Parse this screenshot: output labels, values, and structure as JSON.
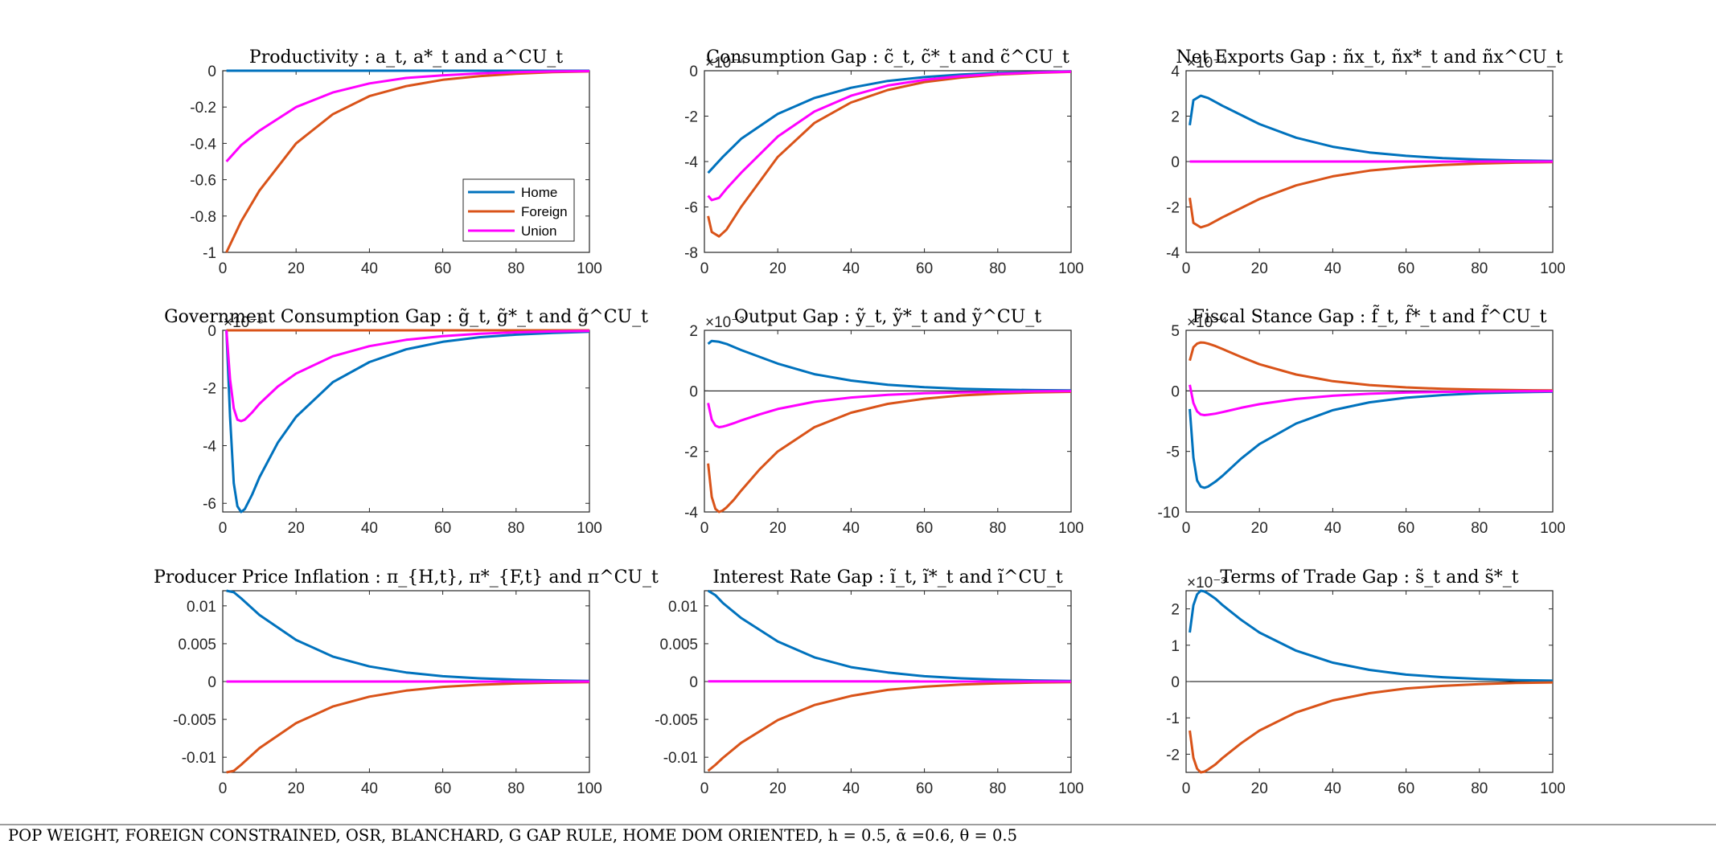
{
  "colors": {
    "home": "#0072BD",
    "foreign": "#D95319",
    "union": "#FF00FF",
    "axis": "#262626",
    "zero_line": "#000000"
  },
  "footer": {
    "text": "POP WEIGHT, FOREIGN CONSTRAINED, OSR, BLANCHARD, G GAP RULE, HOME DOM ORIENTED, h = 0.5, ᾱ =0.6, θ = 0.5"
  },
  "chart_data": [
    {
      "type": "line",
      "title": "Productivity : a_t, a*_t and a^CU_t",
      "xlim": [
        0,
        100
      ],
      "ylim": [
        -1,
        0
      ],
      "xticks": [
        0,
        20,
        40,
        60,
        80,
        100
      ],
      "yticks": [
        0,
        -0.2,
        -0.4,
        -0.6,
        -0.8,
        -1
      ],
      "ytick_labels": [
        "0",
        "-0.2",
        "-0.4",
        "-0.6",
        "-0.8",
        "-1"
      ],
      "exponent": "",
      "zero_line": false,
      "legend": {
        "position": "bottom-right",
        "entries": [
          "Home",
          "Foreign",
          "Union"
        ]
      },
      "series": [
        {
          "name": "Home",
          "x": [
            1,
            100
          ],
          "values": [
            0,
            0
          ]
        },
        {
          "name": "Foreign",
          "x": [
            1,
            5,
            10,
            20,
            30,
            40,
            50,
            60,
            70,
            80,
            90,
            100
          ],
          "values": [
            -1.0,
            -0.83,
            -0.66,
            -0.4,
            -0.24,
            -0.14,
            -0.085,
            -0.05,
            -0.03,
            -0.017,
            -0.008,
            -0.004
          ]
        },
        {
          "name": "Union",
          "x": [
            1,
            5,
            10,
            20,
            30,
            40,
            50,
            60,
            70,
            80,
            90,
            100
          ],
          "values": [
            -0.5,
            -0.41,
            -0.33,
            -0.2,
            -0.12,
            -0.07,
            -0.04,
            -0.025,
            -0.015,
            -0.008,
            -0.004,
            -0.002
          ]
        }
      ]
    },
    {
      "type": "line",
      "title": "Consumption Gap : c̃_t, c̃*_t and c̃^CU_t",
      "xlim": [
        0,
        100
      ],
      "ylim": [
        -8,
        0
      ],
      "xticks": [
        0,
        20,
        40,
        60,
        80,
        100
      ],
      "yticks": [
        0,
        -2,
        -4,
        -6,
        -8
      ],
      "ytick_labels": [
        "0",
        "-2",
        "-4",
        "-6",
        "-8"
      ],
      "exponent": "×10⁻⁴",
      "zero_line": false,
      "series": [
        {
          "name": "Home",
          "x": [
            1,
            5,
            10,
            20,
            30,
            40,
            50,
            60,
            70,
            80,
            90,
            100
          ],
          "values": [
            -4.5,
            -3.8,
            -3.0,
            -1.9,
            -1.2,
            -0.75,
            -0.45,
            -0.28,
            -0.17,
            -0.1,
            -0.06,
            -0.03
          ]
        },
        {
          "name": "Foreign",
          "x": [
            1,
            2,
            4,
            6,
            10,
            20,
            30,
            40,
            50,
            60,
            70,
            80,
            90,
            100
          ],
          "values": [
            -6.4,
            -7.1,
            -7.3,
            -7.0,
            -6.0,
            -3.8,
            -2.3,
            -1.4,
            -0.85,
            -0.5,
            -0.3,
            -0.17,
            -0.1,
            -0.05
          ]
        },
        {
          "name": "Union",
          "x": [
            1,
            2,
            4,
            6,
            10,
            20,
            30,
            40,
            50,
            60,
            70,
            80,
            90,
            100
          ],
          "values": [
            -5.5,
            -5.7,
            -5.6,
            -5.2,
            -4.5,
            -2.9,
            -1.8,
            -1.1,
            -0.65,
            -0.4,
            -0.24,
            -0.14,
            -0.08,
            -0.04
          ]
        }
      ]
    },
    {
      "type": "line",
      "title": "Net Exports Gap : ñx_t, ñx*_t and ñx^CU_t",
      "xlim": [
        0,
        100
      ],
      "ylim": [
        -4,
        4
      ],
      "xticks": [
        0,
        20,
        40,
        60,
        80,
        100
      ],
      "yticks": [
        4,
        2,
        0,
        -2,
        -4
      ],
      "ytick_labels": [
        "4",
        "2",
        "0",
        "-2",
        "-4"
      ],
      "exponent": "×10⁻⁴",
      "zero_line": true,
      "series": [
        {
          "name": "Home",
          "x": [
            1,
            2,
            4,
            6,
            10,
            20,
            30,
            40,
            50,
            60,
            70,
            80,
            90,
            100
          ],
          "values": [
            1.6,
            2.7,
            2.9,
            2.8,
            2.45,
            1.65,
            1.05,
            0.65,
            0.4,
            0.25,
            0.15,
            0.09,
            0.05,
            0.03
          ]
        },
        {
          "name": "Foreign",
          "x": [
            1,
            2,
            4,
            6,
            10,
            20,
            30,
            40,
            50,
            60,
            70,
            80,
            90,
            100
          ],
          "values": [
            -1.6,
            -2.7,
            -2.9,
            -2.8,
            -2.45,
            -1.65,
            -1.05,
            -0.65,
            -0.4,
            -0.25,
            -0.15,
            -0.09,
            -0.05,
            -0.03
          ]
        },
        {
          "name": "Union",
          "x": [
            1,
            100
          ],
          "values": [
            0,
            0
          ]
        }
      ]
    },
    {
      "type": "line",
      "title": "Government Consumption Gap : g̃_t, g̃*_t and g̃^CU_t",
      "xlim": [
        0,
        100
      ],
      "ylim": [
        -6.3,
        0
      ],
      "xticks": [
        0,
        20,
        40,
        60,
        80,
        100
      ],
      "yticks": [
        0,
        -2,
        -4,
        -6
      ],
      "ytick_labels": [
        "0",
        "-2",
        "-4",
        "-6"
      ],
      "exponent": "×10⁻⁵",
      "zero_line": false,
      "series": [
        {
          "name": "Home",
          "x": [
            1,
            2,
            3,
            4,
            5,
            6,
            8,
            10,
            15,
            20,
            30,
            40,
            50,
            60,
            70,
            80,
            90,
            100
          ],
          "values": [
            0,
            -3.0,
            -5.3,
            -6.1,
            -6.3,
            -6.2,
            -5.7,
            -5.1,
            -3.9,
            -3.0,
            -1.8,
            -1.1,
            -0.66,
            -0.4,
            -0.24,
            -0.15,
            -0.09,
            -0.05
          ]
        },
        {
          "name": "Foreign",
          "x": [
            1,
            100
          ],
          "values": [
            0,
            0
          ]
        },
        {
          "name": "Union",
          "x": [
            1,
            2,
            3,
            4,
            5,
            6,
            8,
            10,
            15,
            20,
            30,
            40,
            50,
            60,
            70,
            80,
            90,
            100
          ],
          "values": [
            0,
            -1.7,
            -2.7,
            -3.1,
            -3.15,
            -3.1,
            -2.85,
            -2.55,
            -1.95,
            -1.5,
            -0.9,
            -0.55,
            -0.33,
            -0.2,
            -0.12,
            -0.07,
            -0.04,
            -0.02
          ]
        }
      ]
    },
    {
      "type": "line",
      "title": "Output Gap : ỹ_t, ỹ*_t and ỹ^CU_t",
      "xlim": [
        0,
        100
      ],
      "ylim": [
        -4,
        2
      ],
      "xticks": [
        0,
        20,
        40,
        60,
        80,
        100
      ],
      "yticks": [
        2,
        0,
        -2,
        -4
      ],
      "ytick_labels": [
        "2",
        "0",
        "-2",
        "-4"
      ],
      "exponent": "×10⁻³",
      "zero_line": true,
      "series": [
        {
          "name": "Home",
          "x": [
            1,
            2,
            4,
            6,
            10,
            20,
            30,
            40,
            50,
            60,
            70,
            80,
            90,
            100
          ],
          "values": [
            1.55,
            1.65,
            1.62,
            1.55,
            1.35,
            0.9,
            0.55,
            0.34,
            0.2,
            0.12,
            0.07,
            0.04,
            0.025,
            0.015
          ]
        },
        {
          "name": "Foreign",
          "x": [
            1,
            2,
            3,
            4,
            5,
            6,
            8,
            10,
            15,
            20,
            30,
            40,
            50,
            60,
            70,
            80,
            90,
            100
          ],
          "values": [
            -2.4,
            -3.5,
            -3.9,
            -4.0,
            -3.95,
            -3.85,
            -3.6,
            -3.3,
            -2.6,
            -2.0,
            -1.2,
            -0.72,
            -0.43,
            -0.26,
            -0.15,
            -0.09,
            -0.05,
            -0.03
          ]
        },
        {
          "name": "Union",
          "x": [
            1,
            2,
            3,
            4,
            5,
            6,
            8,
            10,
            15,
            20,
            30,
            40,
            50,
            60,
            70,
            80,
            90,
            100
          ],
          "values": [
            -0.4,
            -0.95,
            -1.15,
            -1.2,
            -1.18,
            -1.15,
            -1.07,
            -0.98,
            -0.78,
            -0.6,
            -0.36,
            -0.22,
            -0.13,
            -0.08,
            -0.05,
            -0.03,
            -0.015,
            -0.008
          ]
        }
      ]
    },
    {
      "type": "line",
      "title": "Fiscal Stance Gap : f̃_t, f̃*_t and f̃^CU_t",
      "xlim": [
        0,
        100
      ],
      "ylim": [
        -10,
        5
      ],
      "xticks": [
        0,
        20,
        40,
        60,
        80,
        100
      ],
      "yticks": [
        5,
        0,
        -5,
        -10
      ],
      "ytick_labels": [
        "5",
        "0",
        "-5",
        "-10"
      ],
      "exponent": "×10⁻⁴",
      "zero_line": true,
      "series": [
        {
          "name": "Home",
          "x": [
            1,
            2,
            3,
            4,
            5,
            6,
            8,
            10,
            15,
            20,
            30,
            40,
            50,
            60,
            70,
            80,
            90,
            100
          ],
          "values": [
            -1.5,
            -5.5,
            -7.4,
            -7.9,
            -8.0,
            -7.9,
            -7.5,
            -7.0,
            -5.6,
            -4.4,
            -2.7,
            -1.6,
            -0.95,
            -0.57,
            -0.34,
            -0.2,
            -0.12,
            -0.07
          ]
        },
        {
          "name": "Foreign",
          "x": [
            1,
            2,
            3,
            4,
            5,
            6,
            8,
            10,
            15,
            20,
            30,
            40,
            50,
            60,
            70,
            80,
            90,
            100
          ],
          "values": [
            2.5,
            3.6,
            3.9,
            4.0,
            3.98,
            3.9,
            3.7,
            3.45,
            2.8,
            2.2,
            1.35,
            0.8,
            0.48,
            0.29,
            0.17,
            0.1,
            0.06,
            0.035
          ]
        },
        {
          "name": "Union",
          "x": [
            1,
            2,
            3,
            4,
            5,
            6,
            8,
            10,
            15,
            20,
            30,
            40,
            50,
            60,
            70,
            80,
            90,
            100
          ],
          "values": [
            0.5,
            -1.0,
            -1.7,
            -1.95,
            -2.0,
            -1.97,
            -1.88,
            -1.75,
            -1.4,
            -1.1,
            -0.67,
            -0.4,
            -0.24,
            -0.14,
            -0.085,
            -0.05,
            -0.03,
            -0.018
          ]
        }
      ]
    },
    {
      "type": "line",
      "title": "Producer Price Inflation : π_{H,t}, π*_{F,t} and π^CU_t",
      "xlim": [
        0,
        100
      ],
      "ylim": [
        -0.012,
        0.012
      ],
      "xticks": [
        0,
        20,
        40,
        60,
        80,
        100
      ],
      "yticks": [
        0.01,
        0.005,
        0,
        -0.005,
        -0.01
      ],
      "ytick_labels": [
        "0.01",
        "0.005",
        "0",
        "-0.005",
        "-0.01"
      ],
      "exponent": "",
      "zero_line": false,
      "series": [
        {
          "name": "Home",
          "x": [
            1,
            3,
            5,
            10,
            20,
            30,
            40,
            50,
            60,
            70,
            80,
            90,
            100
          ],
          "values": [
            0.012,
            0.0118,
            0.011,
            0.0088,
            0.0055,
            0.0033,
            0.002,
            0.0012,
            0.0007,
            0.00042,
            0.00025,
            0.00015,
            9e-05
          ]
        },
        {
          "name": "Foreign",
          "x": [
            1,
            3,
            5,
            10,
            20,
            30,
            40,
            50,
            60,
            70,
            80,
            90,
            100
          ],
          "values": [
            -0.012,
            -0.0118,
            -0.011,
            -0.0088,
            -0.0055,
            -0.0033,
            -0.002,
            -0.0012,
            -0.0007,
            -0.00042,
            -0.00025,
            -0.00015,
            -9e-05
          ]
        },
        {
          "name": "Union",
          "x": [
            1,
            100
          ],
          "values": [
            0,
            0
          ]
        }
      ]
    },
    {
      "type": "line",
      "title": "Interest Rate Gap : ĩ_t, ĩ*_t and ĩ^CU_t",
      "xlim": [
        0,
        100
      ],
      "ylim": [
        -0.012,
        0.012
      ],
      "xticks": [
        0,
        20,
        40,
        60,
        80,
        100
      ],
      "yticks": [
        0.01,
        0.005,
        0,
        -0.005,
        -0.01
      ],
      "ytick_labels": [
        "0.01",
        "0.005",
        "0",
        "-0.005",
        "-0.01"
      ],
      "exponent": "",
      "zero_line": false,
      "series": [
        {
          "name": "Home",
          "x": [
            1,
            3,
            5,
            10,
            20,
            30,
            40,
            50,
            60,
            70,
            80,
            90,
            100
          ],
          "values": [
            0.012,
            0.0114,
            0.0104,
            0.0084,
            0.0053,
            0.0032,
            0.0019,
            0.0012,
            0.0007,
            0.00042,
            0.00025,
            0.00015,
            9e-05
          ]
        },
        {
          "name": "Foreign",
          "x": [
            1,
            3,
            5,
            10,
            20,
            30,
            40,
            50,
            60,
            70,
            80,
            90,
            100
          ],
          "values": [
            -0.0118,
            -0.011,
            -0.0101,
            -0.0081,
            -0.0051,
            -0.0031,
            -0.0019,
            -0.0011,
            -0.00068,
            -0.0004,
            -0.00024,
            -0.00014,
            -8e-05
          ]
        },
        {
          "name": "Union",
          "x": [
            1,
            100
          ],
          "values": [
            3e-05,
            1e-05
          ]
        }
      ]
    },
    {
      "type": "line",
      "title": "Terms of Trade Gap : s̃_t and s̃*_t",
      "xlim": [
        0,
        100
      ],
      "ylim": [
        -2.5,
        2.5
      ],
      "xticks": [
        0,
        20,
        40,
        60,
        80,
        100
      ],
      "yticks": [
        2,
        1,
        0,
        -1,
        -2
      ],
      "ytick_labels": [
        "2",
        "1",
        "0",
        "-1",
        "-2"
      ],
      "exponent": "×10⁻³",
      "zero_line": true,
      "series": [
        {
          "name": "Home",
          "x": [
            1,
            2,
            3,
            4,
            5,
            6,
            8,
            10,
            15,
            20,
            30,
            40,
            50,
            60,
            70,
            80,
            90,
            100
          ],
          "values": [
            1.35,
            2.1,
            2.4,
            2.5,
            2.48,
            2.42,
            2.28,
            2.1,
            1.7,
            1.35,
            0.85,
            0.52,
            0.32,
            0.19,
            0.12,
            0.07,
            0.04,
            0.025
          ]
        },
        {
          "name": "Foreign",
          "x": [
            1,
            2,
            3,
            4,
            5,
            6,
            8,
            10,
            15,
            20,
            30,
            40,
            50,
            60,
            70,
            80,
            90,
            100
          ],
          "values": [
            -1.35,
            -2.1,
            -2.4,
            -2.5,
            -2.48,
            -2.42,
            -2.28,
            -2.1,
            -1.7,
            -1.35,
            -0.85,
            -0.52,
            -0.32,
            -0.19,
            -0.12,
            -0.07,
            -0.04,
            -0.025
          ]
        }
      ]
    }
  ]
}
